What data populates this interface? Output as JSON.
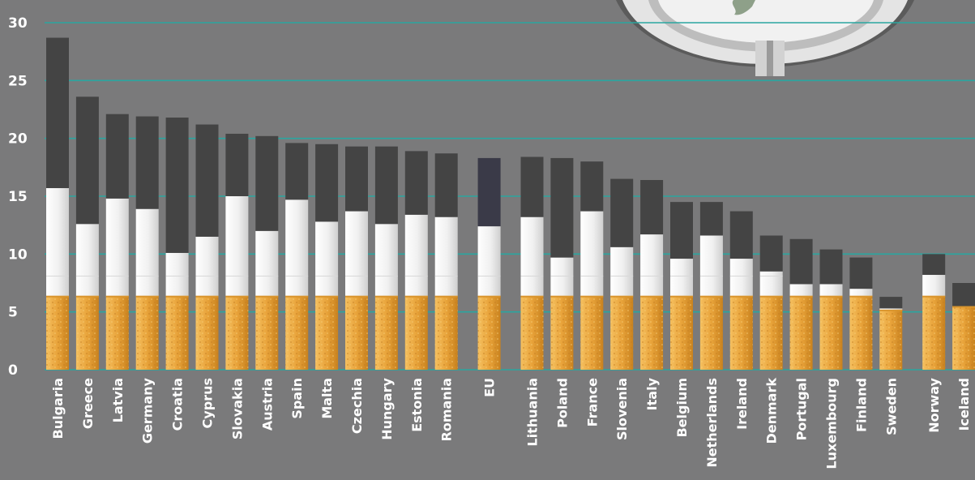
{
  "chart_data": {
    "type": "bar",
    "stacked": true,
    "ylim": [
      0,
      30
    ],
    "yticks": [
      0,
      5,
      10,
      15,
      20,
      25,
      30
    ],
    "grid": true,
    "categories": [
      "Bulgaria",
      "Greece",
      "Latvia",
      "Germany",
      "Croatia",
      "Cyprus",
      "Slovakia",
      "Austria",
      "Spain",
      "Malta",
      "Czechia",
      "Hungary",
      "Estonia",
      "Romania",
      "EU",
      "Lithuania",
      "Poland",
      "France",
      "Slovenia",
      "Italy",
      "Belgium",
      "Netherlands",
      "Ireland",
      "Denmark",
      "Portugal",
      "Luxembourg",
      "Finland",
      "Sweden",
      "Norway",
      "Iceland"
    ],
    "groups": [
      14,
      1,
      13,
      2
    ],
    "series": [
      {
        "values": [
          6.4,
          6.4,
          6.4,
          6.4,
          6.4,
          6.4,
          6.4,
          6.4,
          6.4,
          6.4,
          6.4,
          6.4,
          6.4,
          6.4,
          6.4,
          6.4,
          6.4,
          6.4,
          6.4,
          6.4,
          6.4,
          6.4,
          6.4,
          6.4,
          6.4,
          6.4,
          6.4,
          5.2,
          6.4,
          5.5
        ]
      },
      {
        "values": [
          9.3,
          6.2,
          8.4,
          7.5,
          3.7,
          5.1,
          8.6,
          5.6,
          8.3,
          6.4,
          7.3,
          6.2,
          7.0,
          6.8,
          6.0,
          6.8,
          3.3,
          7.3,
          4.2,
          5.3,
          3.2,
          5.2,
          3.2,
          2.1,
          1.0,
          1.0,
          0.6,
          0.1,
          1.8,
          0.0
        ]
      },
      {
        "values": [
          13.0,
          11.0,
          7.3,
          8.0,
          11.7,
          9.7,
          5.4,
          8.2,
          4.9,
          6.7,
          5.6,
          6.7,
          5.5,
          5.5,
          5.9,
          5.2,
          8.6,
          4.3,
          5.9,
          4.7,
          4.9,
          2.9,
          4.1,
          3.1,
          3.9,
          3.0,
          2.7,
          1.0,
          1.8,
          2.0
        ]
      }
    ],
    "colors": {
      "base": "#e8a33a",
      "middle": "#f0f0f0",
      "top": "#444444",
      "eu_top": "#3a3a48",
      "grid": "#2aa6a0",
      "background": "#7a7a7b"
    }
  }
}
